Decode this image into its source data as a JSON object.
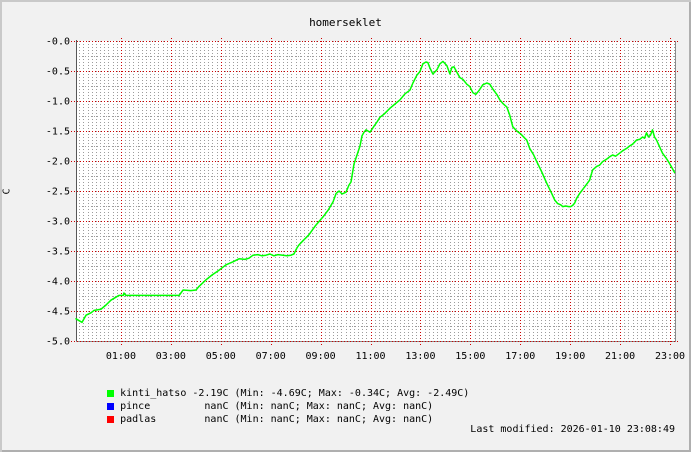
{
  "title": "homerseklet",
  "footer": {
    "last_modified": "Last modified: 2026-01-10 23:08:49"
  },
  "colors": {
    "background": "#f1f1f1",
    "canvas": "#ffffff",
    "grid_major": "#cc0000",
    "grid_minor": "#9c9c9c",
    "frame_left": "#565656",
    "frame_gray": "#8a8a8a",
    "text": "#000000"
  },
  "legend": [
    {
      "name": "kinti_hatso",
      "color": "#00ff00",
      "text": "kinti_hatso -2.19C (Min: -4.69C; Max: -0.34C; Avg: -2.49C)"
    },
    {
      "name": "pince",
      "color": "#0000ff",
      "text": "pince         nanC (Min: nanC; Max: nanC; Avg: nanC)"
    },
    {
      "name": "padlas",
      "color": "#ff0000",
      "text": "padlas        nanC (Min: nanC; Max: nanC; Avg: nanC)"
    }
  ],
  "chart_data": {
    "type": "line",
    "title": "homerseklet",
    "xlabel": "",
    "ylabel": "C",
    "ylim": [
      -5.0,
      0.0
    ],
    "y_major_step": 0.5,
    "y_minor_step": 0.25,
    "y_tick_labels": [
      "-0.0",
      "-0.5",
      "-1.0",
      "-1.5",
      "-2.0",
      "-2.5",
      "-3.0",
      "-3.5",
      "-4.0",
      "-4.5",
      "-5.0"
    ],
    "x_range_hours": [
      -0.8,
      23.2
    ],
    "x_range_note": "24h window; 0 = midnight, negative = previous evening; graph ends ~23:10",
    "x_minor_step_minutes": 10,
    "x_ticks": [
      {
        "h": 1,
        "label": "01:00"
      },
      {
        "h": 3,
        "label": "03:00"
      },
      {
        "h": 5,
        "label": "05:00"
      },
      {
        "h": 7,
        "label": "07:00"
      },
      {
        "h": 9,
        "label": "09:00"
      },
      {
        "h": 11,
        "label": "11:00"
      },
      {
        "h": 13,
        "label": "13:00"
      },
      {
        "h": 15,
        "label": "15:00"
      },
      {
        "h": 17,
        "label": "17:00"
      },
      {
        "h": 19,
        "label": "19:00"
      },
      {
        "h": 21,
        "label": "21:00"
      },
      {
        "h": 23,
        "label": "23:00"
      }
    ],
    "grid": true,
    "legend_position": "bottom-left",
    "series": [
      {
        "name": "kinti_hatso",
        "color": "#00ff00",
        "current": "-2.19C",
        "min": "-4.69C",
        "max": "-0.34C",
        "avg": "-2.49C",
        "points": [
          [
            -0.8,
            -4.63
          ],
          [
            -0.64,
            -4.67
          ],
          [
            -0.56,
            -4.69
          ],
          [
            -0.4,
            -4.57
          ],
          [
            -0.2,
            -4.53
          ],
          [
            -0.08,
            -4.49
          ],
          [
            0.2,
            -4.47
          ],
          [
            0.4,
            -4.4
          ],
          [
            0.6,
            -4.32
          ],
          [
            0.8,
            -4.27
          ],
          [
            0.92,
            -4.24
          ],
          [
            1.1,
            -4.24
          ],
          [
            1.12,
            -4.2
          ],
          [
            1.2,
            -4.24
          ],
          [
            2.0,
            -4.24
          ],
          [
            2.8,
            -4.24
          ],
          [
            3.33,
            -4.24
          ],
          [
            3.49,
            -4.15
          ],
          [
            3.8,
            -4.16
          ],
          [
            4.01,
            -4.15
          ],
          [
            4.13,
            -4.09
          ],
          [
            4.41,
            -3.98
          ],
          [
            4.65,
            -3.9
          ],
          [
            4.93,
            -3.82
          ],
          [
            5.21,
            -3.73
          ],
          [
            5.49,
            -3.68
          ],
          [
            5.73,
            -3.63
          ],
          [
            5.97,
            -3.64
          ],
          [
            6.13,
            -3.62
          ],
          [
            6.29,
            -3.57
          ],
          [
            6.49,
            -3.56
          ],
          [
            6.65,
            -3.58
          ],
          [
            6.81,
            -3.57
          ],
          [
            6.97,
            -3.55
          ],
          [
            7.13,
            -3.58
          ],
          [
            7.29,
            -3.56
          ],
          [
            7.49,
            -3.57
          ],
          [
            7.65,
            -3.58
          ],
          [
            7.81,
            -3.57
          ],
          [
            7.93,
            -3.55
          ],
          [
            8.05,
            -3.45
          ],
          [
            8.13,
            -3.4
          ],
          [
            8.29,
            -3.33
          ],
          [
            8.53,
            -3.23
          ],
          [
            8.81,
            -3.07
          ],
          [
            9.1,
            -2.93
          ],
          [
            9.3,
            -2.82
          ],
          [
            9.5,
            -2.68
          ],
          [
            9.62,
            -2.54
          ],
          [
            9.74,
            -2.5
          ],
          [
            9.86,
            -2.55
          ],
          [
            10.02,
            -2.52
          ],
          [
            10.14,
            -2.4
          ],
          [
            10.22,
            -2.35
          ],
          [
            10.3,
            -2.15
          ],
          [
            10.34,
            -2.05
          ],
          [
            10.42,
            -1.95
          ],
          [
            10.5,
            -1.85
          ],
          [
            10.58,
            -1.75
          ],
          [
            10.66,
            -1.58
          ],
          [
            10.74,
            -1.52
          ],
          [
            10.82,
            -1.48
          ],
          [
            10.9,
            -1.5
          ],
          [
            10.98,
            -1.52
          ],
          [
            11.06,
            -1.47
          ],
          [
            11.14,
            -1.42
          ],
          [
            11.26,
            -1.35
          ],
          [
            11.38,
            -1.27
          ],
          [
            11.54,
            -1.22
          ],
          [
            11.66,
            -1.17
          ],
          [
            11.78,
            -1.12
          ],
          [
            11.98,
            -1.05
          ],
          [
            12.18,
            -0.98
          ],
          [
            12.38,
            -0.88
          ],
          [
            12.58,
            -0.82
          ],
          [
            12.7,
            -0.7
          ],
          [
            12.86,
            -0.57
          ],
          [
            12.98,
            -0.51
          ],
          [
            13.1,
            -0.38
          ],
          [
            13.22,
            -0.35
          ],
          [
            13.3,
            -0.36
          ],
          [
            13.38,
            -0.45
          ],
          [
            13.5,
            -0.55
          ],
          [
            13.66,
            -0.48
          ],
          [
            13.78,
            -0.38
          ],
          [
            13.9,
            -0.34
          ],
          [
            14.06,
            -0.41
          ],
          [
            14.18,
            -0.55
          ],
          [
            14.26,
            -0.44
          ],
          [
            14.34,
            -0.43
          ],
          [
            14.46,
            -0.52
          ],
          [
            14.58,
            -0.61
          ],
          [
            14.7,
            -0.64
          ],
          [
            14.86,
            -0.72
          ],
          [
            14.98,
            -0.76
          ],
          [
            15.1,
            -0.86
          ],
          [
            15.22,
            -0.89
          ],
          [
            15.34,
            -0.83
          ],
          [
            15.5,
            -0.73
          ],
          [
            15.66,
            -0.7
          ],
          [
            15.78,
            -0.72
          ],
          [
            15.9,
            -0.8
          ],
          [
            16.06,
            -0.89
          ],
          [
            16.18,
            -0.98
          ],
          [
            16.3,
            -1.04
          ],
          [
            16.46,
            -1.1
          ],
          [
            16.58,
            -1.24
          ],
          [
            16.7,
            -1.43
          ],
          [
            16.86,
            -1.5
          ],
          [
            17.02,
            -1.55
          ],
          [
            17.18,
            -1.62
          ],
          [
            17.26,
            -1.65
          ],
          [
            17.38,
            -1.79
          ],
          [
            17.54,
            -1.9
          ],
          [
            17.66,
            -2.01
          ],
          [
            17.86,
            -2.18
          ],
          [
            18.06,
            -2.37
          ],
          [
            18.26,
            -2.54
          ],
          [
            18.38,
            -2.65
          ],
          [
            18.5,
            -2.71
          ],
          [
            18.62,
            -2.73
          ],
          [
            18.7,
            -2.76
          ],
          [
            18.82,
            -2.75
          ],
          [
            18.94,
            -2.76
          ],
          [
            19.02,
            -2.76
          ],
          [
            19.1,
            -2.74
          ],
          [
            19.18,
            -2.7
          ],
          [
            19.26,
            -2.62
          ],
          [
            19.38,
            -2.54
          ],
          [
            19.58,
            -2.43
          ],
          [
            19.78,
            -2.32
          ],
          [
            19.9,
            -2.15
          ],
          [
            20.06,
            -2.09
          ],
          [
            20.18,
            -2.07
          ],
          [
            20.3,
            -2.01
          ],
          [
            20.46,
            -1.97
          ],
          [
            20.58,
            -1.93
          ],
          [
            20.7,
            -1.9
          ],
          [
            20.82,
            -1.92
          ],
          [
            20.98,
            -1.87
          ],
          [
            21.1,
            -1.83
          ],
          [
            21.26,
            -1.79
          ],
          [
            21.38,
            -1.75
          ],
          [
            21.5,
            -1.72
          ],
          [
            21.66,
            -1.65
          ],
          [
            21.78,
            -1.64
          ],
          [
            21.9,
            -1.6
          ],
          [
            21.98,
            -1.62
          ],
          [
            22.06,
            -1.53
          ],
          [
            22.14,
            -1.6
          ],
          [
            22.22,
            -1.57
          ],
          [
            22.3,
            -1.48
          ],
          [
            22.38,
            -1.6
          ],
          [
            22.46,
            -1.65
          ],
          [
            22.58,
            -1.76
          ],
          [
            22.7,
            -1.87
          ],
          [
            22.86,
            -1.96
          ],
          [
            22.98,
            -2.04
          ],
          [
            23.1,
            -2.13
          ],
          [
            23.18,
            -2.19
          ]
        ]
      },
      {
        "name": "pince",
        "color": "#0000ff",
        "current": "nanC",
        "min": "nanC",
        "max": "nanC",
        "avg": "nanC",
        "points": []
      },
      {
        "name": "padlas",
        "color": "#ff0000",
        "current": "nanC",
        "min": "nanC",
        "max": "nanC",
        "avg": "nanC",
        "points": []
      }
    ]
  }
}
